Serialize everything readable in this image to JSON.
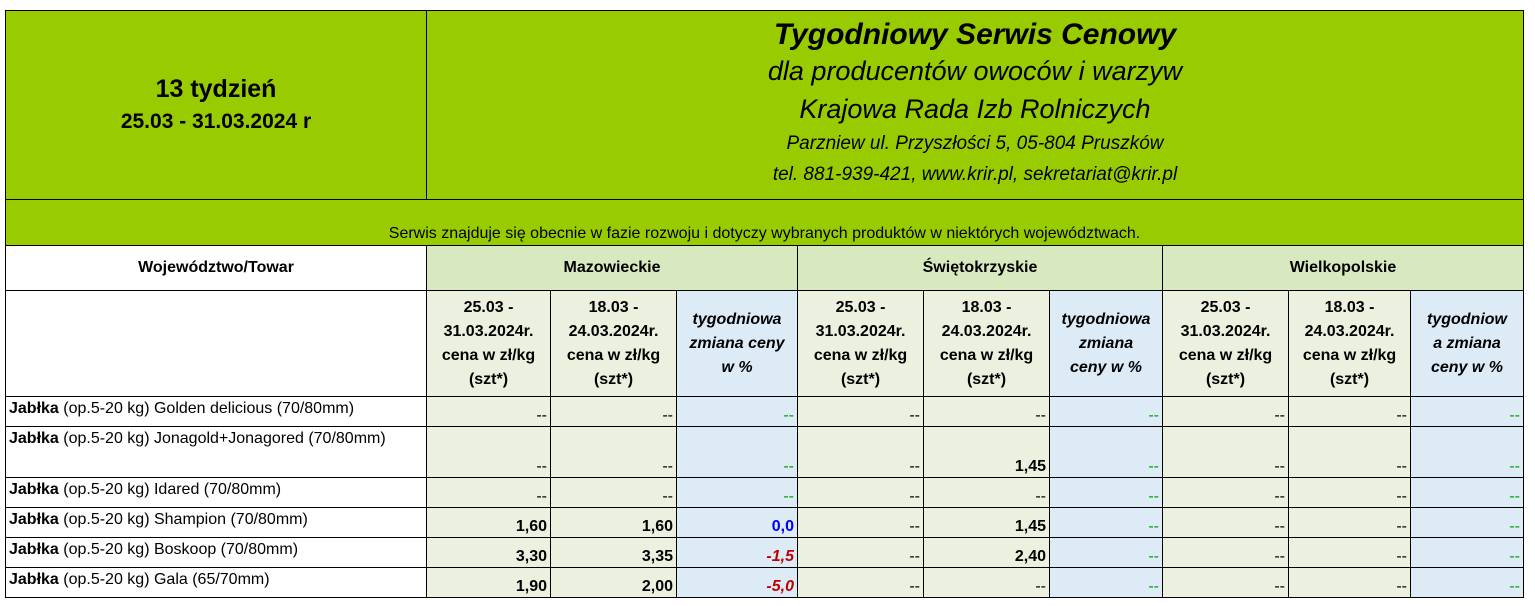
{
  "header": {
    "week_number": "13 tydzień",
    "week_range": "25.03 - 31.03.2024 r",
    "title": "Tygodniowy Serwis Cenowy",
    "subtitle": "dla producentów owoców i warzyw",
    "organization": "Krajowa Rada Izb Rolniczych",
    "address": "Parzniew ul. Przyszłości 5, 05-804 Pruszków",
    "contact": "tel. 881-939-421, www.krir.pl, sekretariat@krir.pl"
  },
  "notice": "Serwis znajduje się obecnie w fazie rozwoju i dotyczy wybranych produktów w niektórych województwach.",
  "table": {
    "corner_label": "Województwo/Towar",
    "regions": [
      "Mazowieckie",
      "Świętokrzyskie",
      "Wielkopolskie"
    ],
    "col_current": [
      "25.03 -",
      "31.03.2024r.",
      "cena w zł/kg",
      "(szt*)"
    ],
    "col_previous": [
      "18.03 -",
      "24.03.2024r.",
      "cena w zł/kg",
      "(szt*)"
    ],
    "col_change": [
      "tygodniowa",
      "zmiana ceny",
      "w %"
    ],
    "col_change_2": [
      "tygodniowa",
      "zmiana",
      "ceny w %"
    ],
    "col_change_3": [
      "tygodniow",
      "a zmiana",
      "ceny w %"
    ],
    "rows": [
      {
        "bold": "Jabłka",
        "rest": " (op.5-20 kg) Golden delicious (70/80mm)",
        "cells": [
          "--",
          "--",
          "--",
          "--",
          "--",
          "--",
          "--",
          "--",
          "--"
        ]
      },
      {
        "bold": "Jabłka",
        "rest": " (op.5-20 kg) Jonagold+Jonagored (70/80mm)",
        "cells": [
          "--",
          "--",
          "--",
          "--",
          "1,45",
          "--",
          "--",
          "--",
          "--"
        ]
      },
      {
        "bold": "Jabłka",
        "rest": " (op.5-20 kg) Idared (70/80mm)",
        "cells": [
          "--",
          "--",
          "--",
          "--",
          "--",
          "--",
          "--",
          "--",
          "--"
        ]
      },
      {
        "bold": "Jabłka",
        "rest": " (op.5-20 kg) Shampion (70/80mm)",
        "cells": [
          "1,60",
          "1,60",
          "0,0",
          "--",
          "1,45",
          "--",
          "--",
          "--",
          "--"
        ]
      },
      {
        "bold": "Jabłka",
        "rest": " (op.5-20 kg) Boskoop (70/80mm)",
        "cells": [
          "3,30",
          "3,35",
          "-1,5",
          "--",
          "2,40",
          "--",
          "--",
          "--",
          "--"
        ]
      },
      {
        "bold": "Jabłka",
        "rest": " (op.5-20 kg) Gala (65/70mm)",
        "cells": [
          "1,90",
          "2,00",
          "-5,0",
          "--",
          "--",
          "--",
          "--",
          "--",
          "--"
        ]
      }
    ]
  }
}
